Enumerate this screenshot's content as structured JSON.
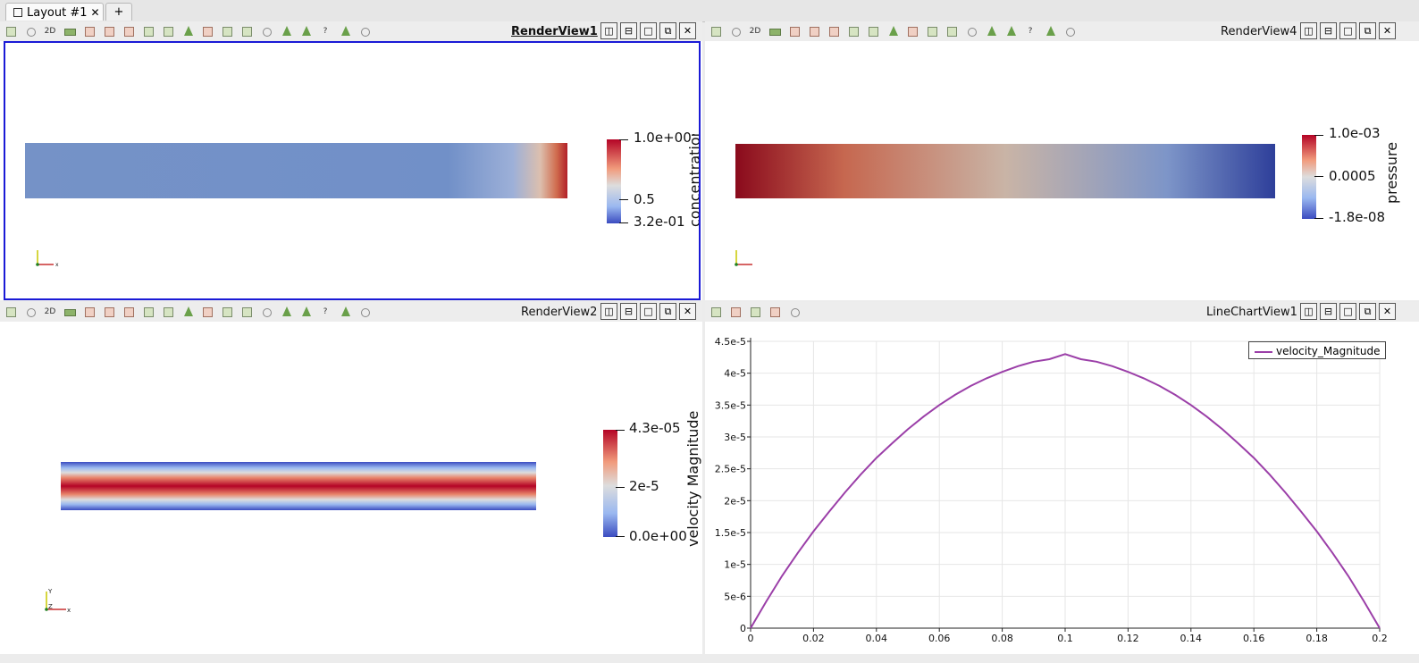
{
  "tabs": {
    "active_label": "Layout #1",
    "close_glyph": "✕",
    "add_label": "+"
  },
  "views": {
    "tl": {
      "title": "RenderView1",
      "twoD": "2D",
      "colorbar": {
        "title": "concentration",
        "max": "1.0e+00",
        "mid": "0.5",
        "min": "3.2e-01"
      }
    },
    "tr": {
      "title": "RenderView4",
      "twoD": "2D",
      "colorbar": {
        "title": "pressure",
        "max": "1.0e-03",
        "mid": "0.0005",
        "min": "-1.8e-08"
      }
    },
    "bl": {
      "title": "RenderView2",
      "twoD": "2D",
      "colorbar": {
        "title": "velocity Magnitude",
        "max": "4.3e-05",
        "mid": "2e-5",
        "min": "0.0e+00"
      }
    },
    "br": {
      "title": "LineChartView1"
    }
  },
  "window_buttons": [
    "split-horizontal",
    "split-vertical",
    "maximize",
    "pop-out",
    "close"
  ],
  "axes_triad": {
    "x": "x",
    "y": "Y",
    "z": "Z"
  },
  "colors": {
    "accent_selection": "#1a1ad6",
    "series": "#9b3fa8"
  },
  "chart_data": {
    "type": "line",
    "title": "",
    "xlabel": "",
    "ylabel": "",
    "xlim": [
      0,
      0.2
    ],
    "ylim": [
      0,
      4.5e-05
    ],
    "x_ticks": [
      "0",
      "0.02",
      "0.04",
      "0.06",
      "0.08",
      "0.1",
      "0.12",
      "0.14",
      "0.16",
      "0.18",
      "0.2"
    ],
    "y_ticks": [
      "0",
      "5e-6",
      "1e-5",
      "1.5e-5",
      "2e-5",
      "2.5e-5",
      "3e-5",
      "3.5e-5",
      "4e-5",
      "4.5e-5"
    ],
    "grid": true,
    "legend_position": "top-right",
    "series": [
      {
        "name": "velocity_Magnitude",
        "color": "#9b3fa8",
        "x": [
          0,
          0.005,
          0.01,
          0.015,
          0.02,
          0.025,
          0.03,
          0.035,
          0.04,
          0.045,
          0.05,
          0.055,
          0.06,
          0.065,
          0.07,
          0.075,
          0.08,
          0.085,
          0.09,
          0.095,
          0.1,
          0.105,
          0.11,
          0.115,
          0.12,
          0.125,
          0.13,
          0.135,
          0.14,
          0.145,
          0.15,
          0.155,
          0.16,
          0.165,
          0.17,
          0.175,
          0.18,
          0.185,
          0.19,
          0.195,
          0.2
        ],
        "values": [
          0,
          4.2e-06,
          8.2e-06,
          1.18e-05,
          1.52e-05,
          1.83e-05,
          2.13e-05,
          2.41e-05,
          2.67e-05,
          2.9e-05,
          3.12e-05,
          3.32e-05,
          3.5e-05,
          3.66e-05,
          3.8e-05,
          3.92e-05,
          4.02e-05,
          4.11e-05,
          4.18e-05,
          4.22e-05,
          4.3e-05,
          4.22e-05,
          4.18e-05,
          4.11e-05,
          4.02e-05,
          3.92e-05,
          3.8e-05,
          3.66e-05,
          3.5e-05,
          3.32e-05,
          3.12e-05,
          2.9e-05,
          2.67e-05,
          2.41e-05,
          2.13e-05,
          1.83e-05,
          1.52e-05,
          1.18e-05,
          8.2e-06,
          4.2e-06,
          0
        ]
      }
    ]
  }
}
